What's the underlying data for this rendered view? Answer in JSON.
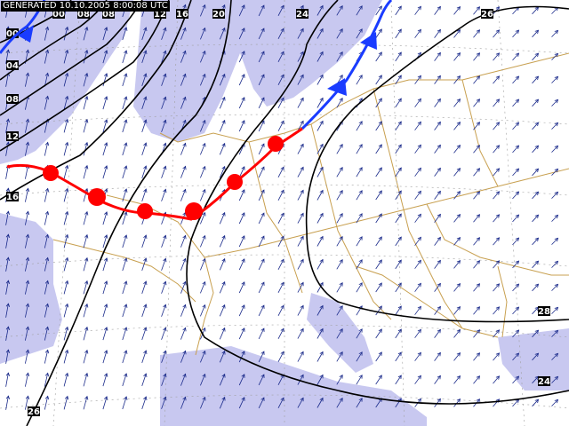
{
  "banner": "GENERATED 10.10.2005 8:00:08 UTC",
  "colors": {
    "sea": "#ffffff",
    "land": "#c8c8f0",
    "border": "#c8a050",
    "isobar": "#000000",
    "cold_front": "#1a3cff",
    "warm_front": "#ff0000",
    "wind_arrow": "#1a2a8a",
    "grid": "#a0a0a0"
  },
  "isobar_labels": [
    "00",
    "04",
    "08",
    "12",
    "16",
    "20",
    "24",
    "26",
    "28",
    "24",
    "26",
    "08",
    "12",
    "16",
    "08",
    "00",
    "04"
  ],
  "fronts": [
    {
      "type": "cold",
      "name": "cold-front"
    },
    {
      "type": "warm",
      "name": "warm-front"
    }
  ]
}
